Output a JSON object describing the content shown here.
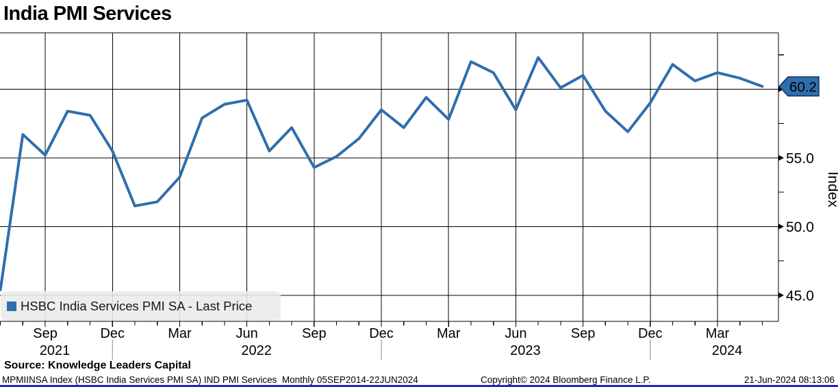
{
  "title": "India PMI Services",
  "colors": {
    "line": "#2f6eae",
    "badge_fill": "#2f6eae",
    "badge_border": "#15314f",
    "badge_text": "#ffffff",
    "axis": "#000000",
    "grid": "#000000",
    "year_separator": "#999999",
    "legend_bg": "#ebebeb",
    "bottom_bar": "#2222cc"
  },
  "chart_data": {
    "type": "line",
    "title": "India PMI Services",
    "ylabel": "Index",
    "ylim": [
      43.1,
      64.1
    ],
    "grid": true,
    "legend_position": "bottom-left",
    "y_major_ticks": [
      45.0,
      50.0,
      55.0,
      60.0
    ],
    "y_minor_ticks": [
      47.5,
      52.5,
      57.5,
      62.5
    ],
    "series": [
      {
        "name": "HSBC India Services PMI SA - Last Price",
        "x": [
          "Jul 2021",
          "Aug 2021",
          "Sep 2021",
          "Oct 2021",
          "Nov 2021",
          "Dec 2021",
          "Jan 2022",
          "Feb 2022",
          "Mar 2022",
          "Apr 2022",
          "May 2022",
          "Jun 2022",
          "Jul 2022",
          "Aug 2022",
          "Sep 2022",
          "Oct 2022",
          "Nov 2022",
          "Dec 2022",
          "Jan 2023",
          "Feb 2023",
          "Mar 2023",
          "Apr 2023",
          "May 2023",
          "Jun 2023",
          "Jul 2023",
          "Aug 2023",
          "Sep 2023",
          "Oct 2023",
          "Nov 2023",
          "Dec 2023",
          "Jan 2024",
          "Feb 2024",
          "Mar 2024",
          "Apr 2024",
          "May 2024"
        ],
        "values": [
          45.4,
          56.7,
          55.2,
          58.4,
          58.1,
          55.5,
          51.5,
          51.8,
          53.6,
          57.9,
          58.9,
          59.2,
          55.5,
          57.2,
          54.3,
          55.1,
          56.4,
          58.5,
          57.2,
          59.4,
          57.8,
          62.0,
          61.2,
          58.5,
          62.3,
          60.1,
          61.0,
          58.4,
          56.9,
          59.0,
          61.8,
          60.6,
          61.2,
          60.8,
          60.2
        ]
      }
    ],
    "x_quarter_ticks": [
      {
        "month_index": 2,
        "label": "Sep"
      },
      {
        "month_index": 5,
        "label": "Dec"
      },
      {
        "month_index": 8,
        "label": "Mar"
      },
      {
        "month_index": 11,
        "label": "Jun"
      },
      {
        "month_index": 14,
        "label": "Sep"
      },
      {
        "month_index": 17,
        "label": "Dec"
      },
      {
        "month_index": 20,
        "label": "Mar"
      },
      {
        "month_index": 23,
        "label": "Jun"
      },
      {
        "month_index": 26,
        "label": "Sep"
      },
      {
        "month_index": 29,
        "label": "Dec"
      },
      {
        "month_index": 32,
        "label": "Mar"
      }
    ],
    "year_labels": [
      {
        "month_index": 2,
        "label": "2021"
      },
      {
        "month_index": 11,
        "label": "2022"
      },
      {
        "month_index": 23,
        "label": "2023"
      },
      {
        "month_index": 32,
        "label": "2024"
      }
    ],
    "year_separators_month_index": [
      5,
      17,
      29
    ],
    "last_price": "60.2"
  },
  "legend": {
    "label": "HSBC India Services PMI SA - Last Price"
  },
  "footer": {
    "source": "Source: Knowledge Leaders Capital",
    "ticker_line": "MPMIINSA Index (HSBC India Services PMI SA) IND PMI Services  Monthly 05SEP2014-22JUN2024",
    "copyright": "Copyright© 2024 Bloomberg Finance L.P.",
    "timestamp": "21-Jun-2024 08:13:06"
  }
}
